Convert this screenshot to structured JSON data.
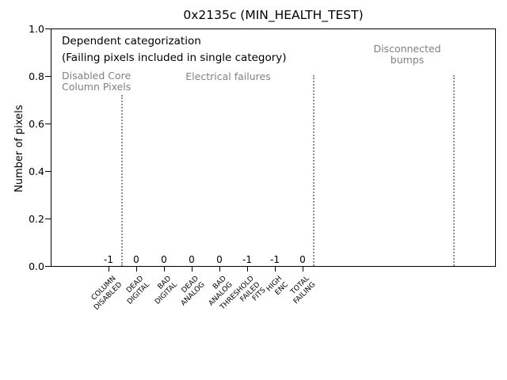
{
  "window": {
    "title": "0x2135c (MIN_HEALTH_TEST)"
  },
  "annotations": {
    "primary": "Dependent categorization",
    "secondary": "(Failing pixels included in single category)",
    "group_disabled_core": "Disabled Core\nColumn Pixels",
    "group_electrical": "Electrical failures",
    "group_disconnected": "Disconnected\nbumps"
  },
  "colors": {
    "text": "#000000",
    "annotation_gray": "#808080",
    "separator_gray": "#8f8f8f",
    "background": "#ffffff"
  },
  "chart_data": {
    "type": "bar",
    "title": "0x2135c (MIN_HEALTH_TEST)",
    "xlabel": "",
    "ylabel": "Number of pixels",
    "ylim": [
      0.0,
      1.0
    ],
    "yticks": [
      0.0,
      0.2,
      0.4,
      0.6,
      0.8,
      1.0
    ],
    "ytick_labels": [
      "0.0",
      "0.2",
      "0.4",
      "0.6",
      "0.8",
      "1.0"
    ],
    "categories": [
      "COLUMN DISABLED",
      "DEAD DIGITAL",
      "BAD DIGITAL",
      "DEAD ANALOG",
      "BAD ANALOG",
      "THRESHOLD FAILED FITS",
      "HIGH ENC",
      "TOTAL FAILING"
    ],
    "category_label_lines": [
      [
        "COLUMN",
        "DISABLED"
      ],
      [
        "DEAD",
        "DIGITAL"
      ],
      [
        "BAD",
        "DIGITAL"
      ],
      [
        "DEAD",
        "ANALOG"
      ],
      [
        "BAD",
        "ANALOG"
      ],
      [
        "THRESHOLD",
        "FAILED",
        "FITS"
      ],
      [
        "HIGH",
        "ENC"
      ],
      [
        "TOTAL",
        "FAILING"
      ]
    ],
    "values": [
      -1,
      0,
      0,
      0,
      0,
      -1,
      -1,
      0
    ],
    "value_labels": [
      "-1",
      "0",
      "0",
      "0",
      "0",
      "-1",
      "-1",
      "0"
    ],
    "grid": false,
    "legend": null,
    "group_separators": [
      {
        "label": "Disabled Core Column Pixels",
        "between": [
          "COLUMN DISABLED",
          "DEAD DIGITAL"
        ]
      },
      {
        "label": "Electrical failures",
        "after": "TOTAL FAILING"
      },
      {
        "label": "Disconnected bumps",
        "after": "right margin"
      }
    ]
  }
}
